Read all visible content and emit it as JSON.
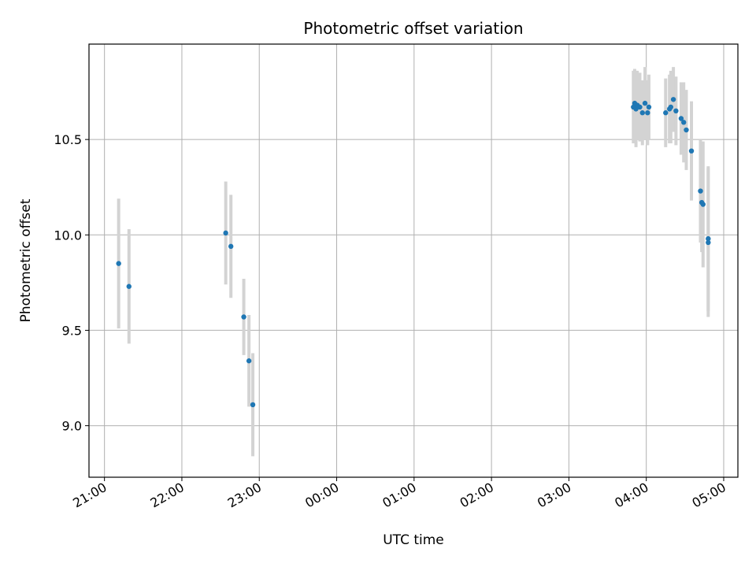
{
  "chart_data": {
    "type": "scatter",
    "title": "Photometric offset variation",
    "xlabel": "UTC time",
    "ylabel": "Photometric offset",
    "x_unit": "UTC datetime",
    "xlim": [
      "20:48",
      "05:11"
    ],
    "ylim": [
      8.73,
      11.0
    ],
    "grid": true,
    "x_ticks": [
      "21:00",
      "22:00",
      "23:00",
      "00:00",
      "01:00",
      "02:00",
      "03:00",
      "04:00",
      "05:00"
    ],
    "y_ticks": [
      "9.0",
      "9.5",
      "10.0",
      "10.5"
    ],
    "colors": {
      "marker": "#1f77b4",
      "errorbar": "#d3d3d3",
      "grid": "#b0b0b0"
    },
    "series": [
      {
        "points": [
          {
            "x": "21:11",
            "y": 9.85,
            "err": 0.34
          },
          {
            "x": "21:19",
            "y": 9.73,
            "err": 0.3
          },
          {
            "x": "22:34",
            "y": 10.01,
            "err": 0.27
          },
          {
            "x": "22:38",
            "y": 9.94,
            "err": 0.27
          },
          {
            "x": "22:48",
            "y": 9.57,
            "err": 0.2
          },
          {
            "x": "22:52",
            "y": 9.34,
            "err": 0.24
          },
          {
            "x": "22:55",
            "y": 9.11,
            "err": 0.27
          },
          {
            "x": "03:50",
            "y": 10.67,
            "err": 0.19
          },
          {
            "x": "03:51",
            "y": 10.69,
            "err": 0.18
          },
          {
            "x": "03:52",
            "y": 10.66,
            "err": 0.2
          },
          {
            "x": "03:53",
            "y": 10.68,
            "err": 0.18
          },
          {
            "x": "03:55",
            "y": 10.67,
            "err": 0.18
          },
          {
            "x": "03:57",
            "y": 10.64,
            "err": 0.17
          },
          {
            "x": "03:59",
            "y": 10.69,
            "err": 0.19
          },
          {
            "x": "04:01",
            "y": 10.64,
            "err": 0.17
          },
          {
            "x": "04:02",
            "y": 10.67,
            "err": 0.17
          },
          {
            "x": "04:15",
            "y": 10.64,
            "err": 0.18
          },
          {
            "x": "04:18",
            "y": 10.66,
            "err": 0.18
          },
          {
            "x": "04:19",
            "y": 10.67,
            "err": 0.19
          },
          {
            "x": "04:21",
            "y": 10.71,
            "err": 0.17
          },
          {
            "x": "04:23",
            "y": 10.65,
            "err": 0.18
          },
          {
            "x": "04:27",
            "y": 10.61,
            "err": 0.19
          },
          {
            "x": "04:29",
            "y": 10.59,
            "err": 0.21
          },
          {
            "x": "04:31",
            "y": 10.55,
            "err": 0.21
          },
          {
            "x": "04:35",
            "y": 10.44,
            "err": 0.26
          },
          {
            "x": "04:42",
            "y": 10.23,
            "err": 0.27
          },
          {
            "x": "04:43",
            "y": 10.17,
            "err": 0.26
          },
          {
            "x": "04:44",
            "y": 10.16,
            "err": 0.33
          },
          {
            "x": "04:48",
            "y": 9.98,
            "err": 0.38
          },
          {
            "x": "04:48",
            "y": 9.96,
            "err": 0.39
          }
        ]
      }
    ]
  }
}
